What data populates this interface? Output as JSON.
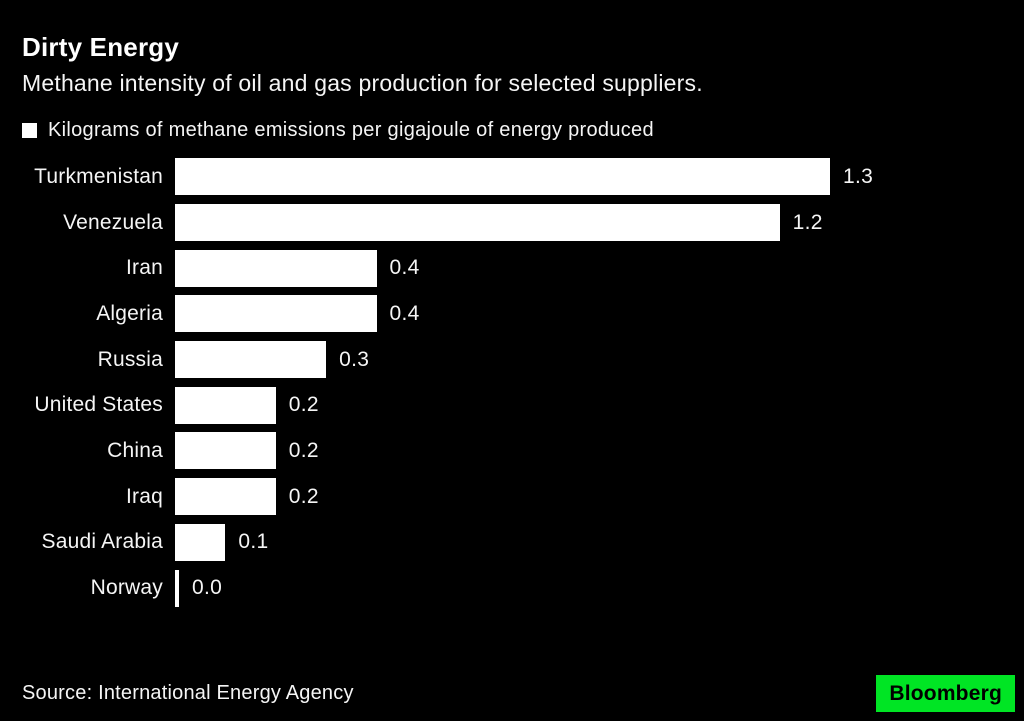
{
  "header": {
    "title": "Dirty Energy",
    "subtitle": "Methane intensity of oil and gas production for selected suppliers."
  },
  "legend": {
    "label": "Kilograms of methane emissions per gigajoule of energy produced"
  },
  "chart_data": {
    "type": "bar",
    "orientation": "horizontal",
    "title": "Dirty Energy",
    "subtitle": "Methane intensity of oil and gas production for selected suppliers.",
    "series_label": "Kilograms of methane emissions per gigajoule of energy produced",
    "categories": [
      "Turkmenistan",
      "Venezuela",
      "Iran",
      "Algeria",
      "Russia",
      "United States",
      "China",
      "Iraq",
      "Saudi Arabia",
      "Norway"
    ],
    "values": [
      1.3,
      1.2,
      0.4,
      0.4,
      0.3,
      0.2,
      0.2,
      0.2,
      0.1,
      0.0
    ],
    "value_labels": [
      "1.3",
      "1.2",
      "0.4",
      "0.4",
      "0.3",
      "0.2",
      "0.2",
      "0.2",
      "0.1",
      "0.0"
    ],
    "xlim": [
      0,
      1.3
    ],
    "grid": false,
    "legend_position": "top-left",
    "value_label_position": "outside-end",
    "bar_color": "#ffffff"
  },
  "footer": {
    "source": "Source: International Energy Agency",
    "logo_text": "Bloomberg"
  },
  "colors": {
    "background": "#000000",
    "text": "#ffffff",
    "bar": "#ffffff",
    "logo_background": "#00e524",
    "logo_text": "#000000"
  }
}
